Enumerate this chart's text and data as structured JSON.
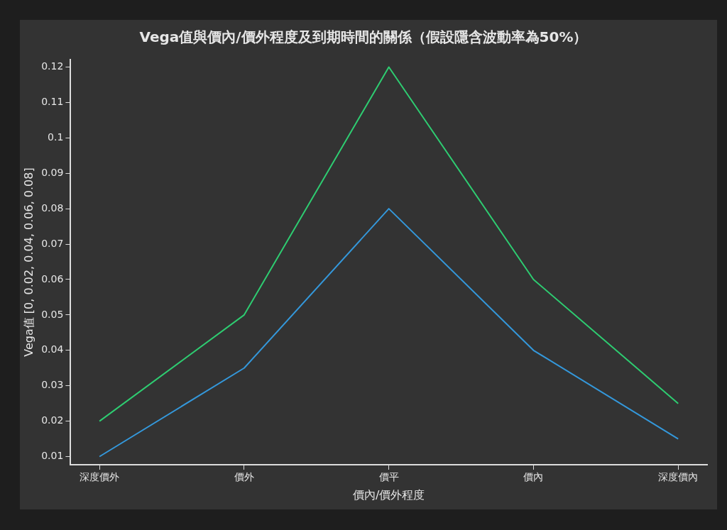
{
  "chart_data": {
    "type": "line",
    "title": "Vega值與價內/價外程度及到期時間的關係（假設隱含波動率為50%）",
    "xlabel": "價內/價外程度",
    "ylabel": "Vega值 [0, 0.02, 0.04, 0.06, 0.08]",
    "categories": [
      "深度價外",
      "價外",
      "價平",
      "價內",
      "深度價內"
    ],
    "series": [
      {
        "color": "#2ecc71",
        "values": [
          0.02,
          0.05,
          0.12,
          0.06,
          0.025
        ]
      },
      {
        "color": "#3498db",
        "values": [
          0.01,
          0.035,
          0.08,
          0.04,
          0.015
        ]
      }
    ],
    "ylim": [
      0.0077,
      0.1221
    ],
    "yticks": [
      0.01,
      0.02,
      0.03,
      0.04,
      0.05,
      0.06,
      0.07,
      0.08,
      0.09,
      0.1,
      0.11,
      0.12
    ],
    "grid": false,
    "legend": false,
    "marker": "none",
    "line_style": "solid"
  }
}
